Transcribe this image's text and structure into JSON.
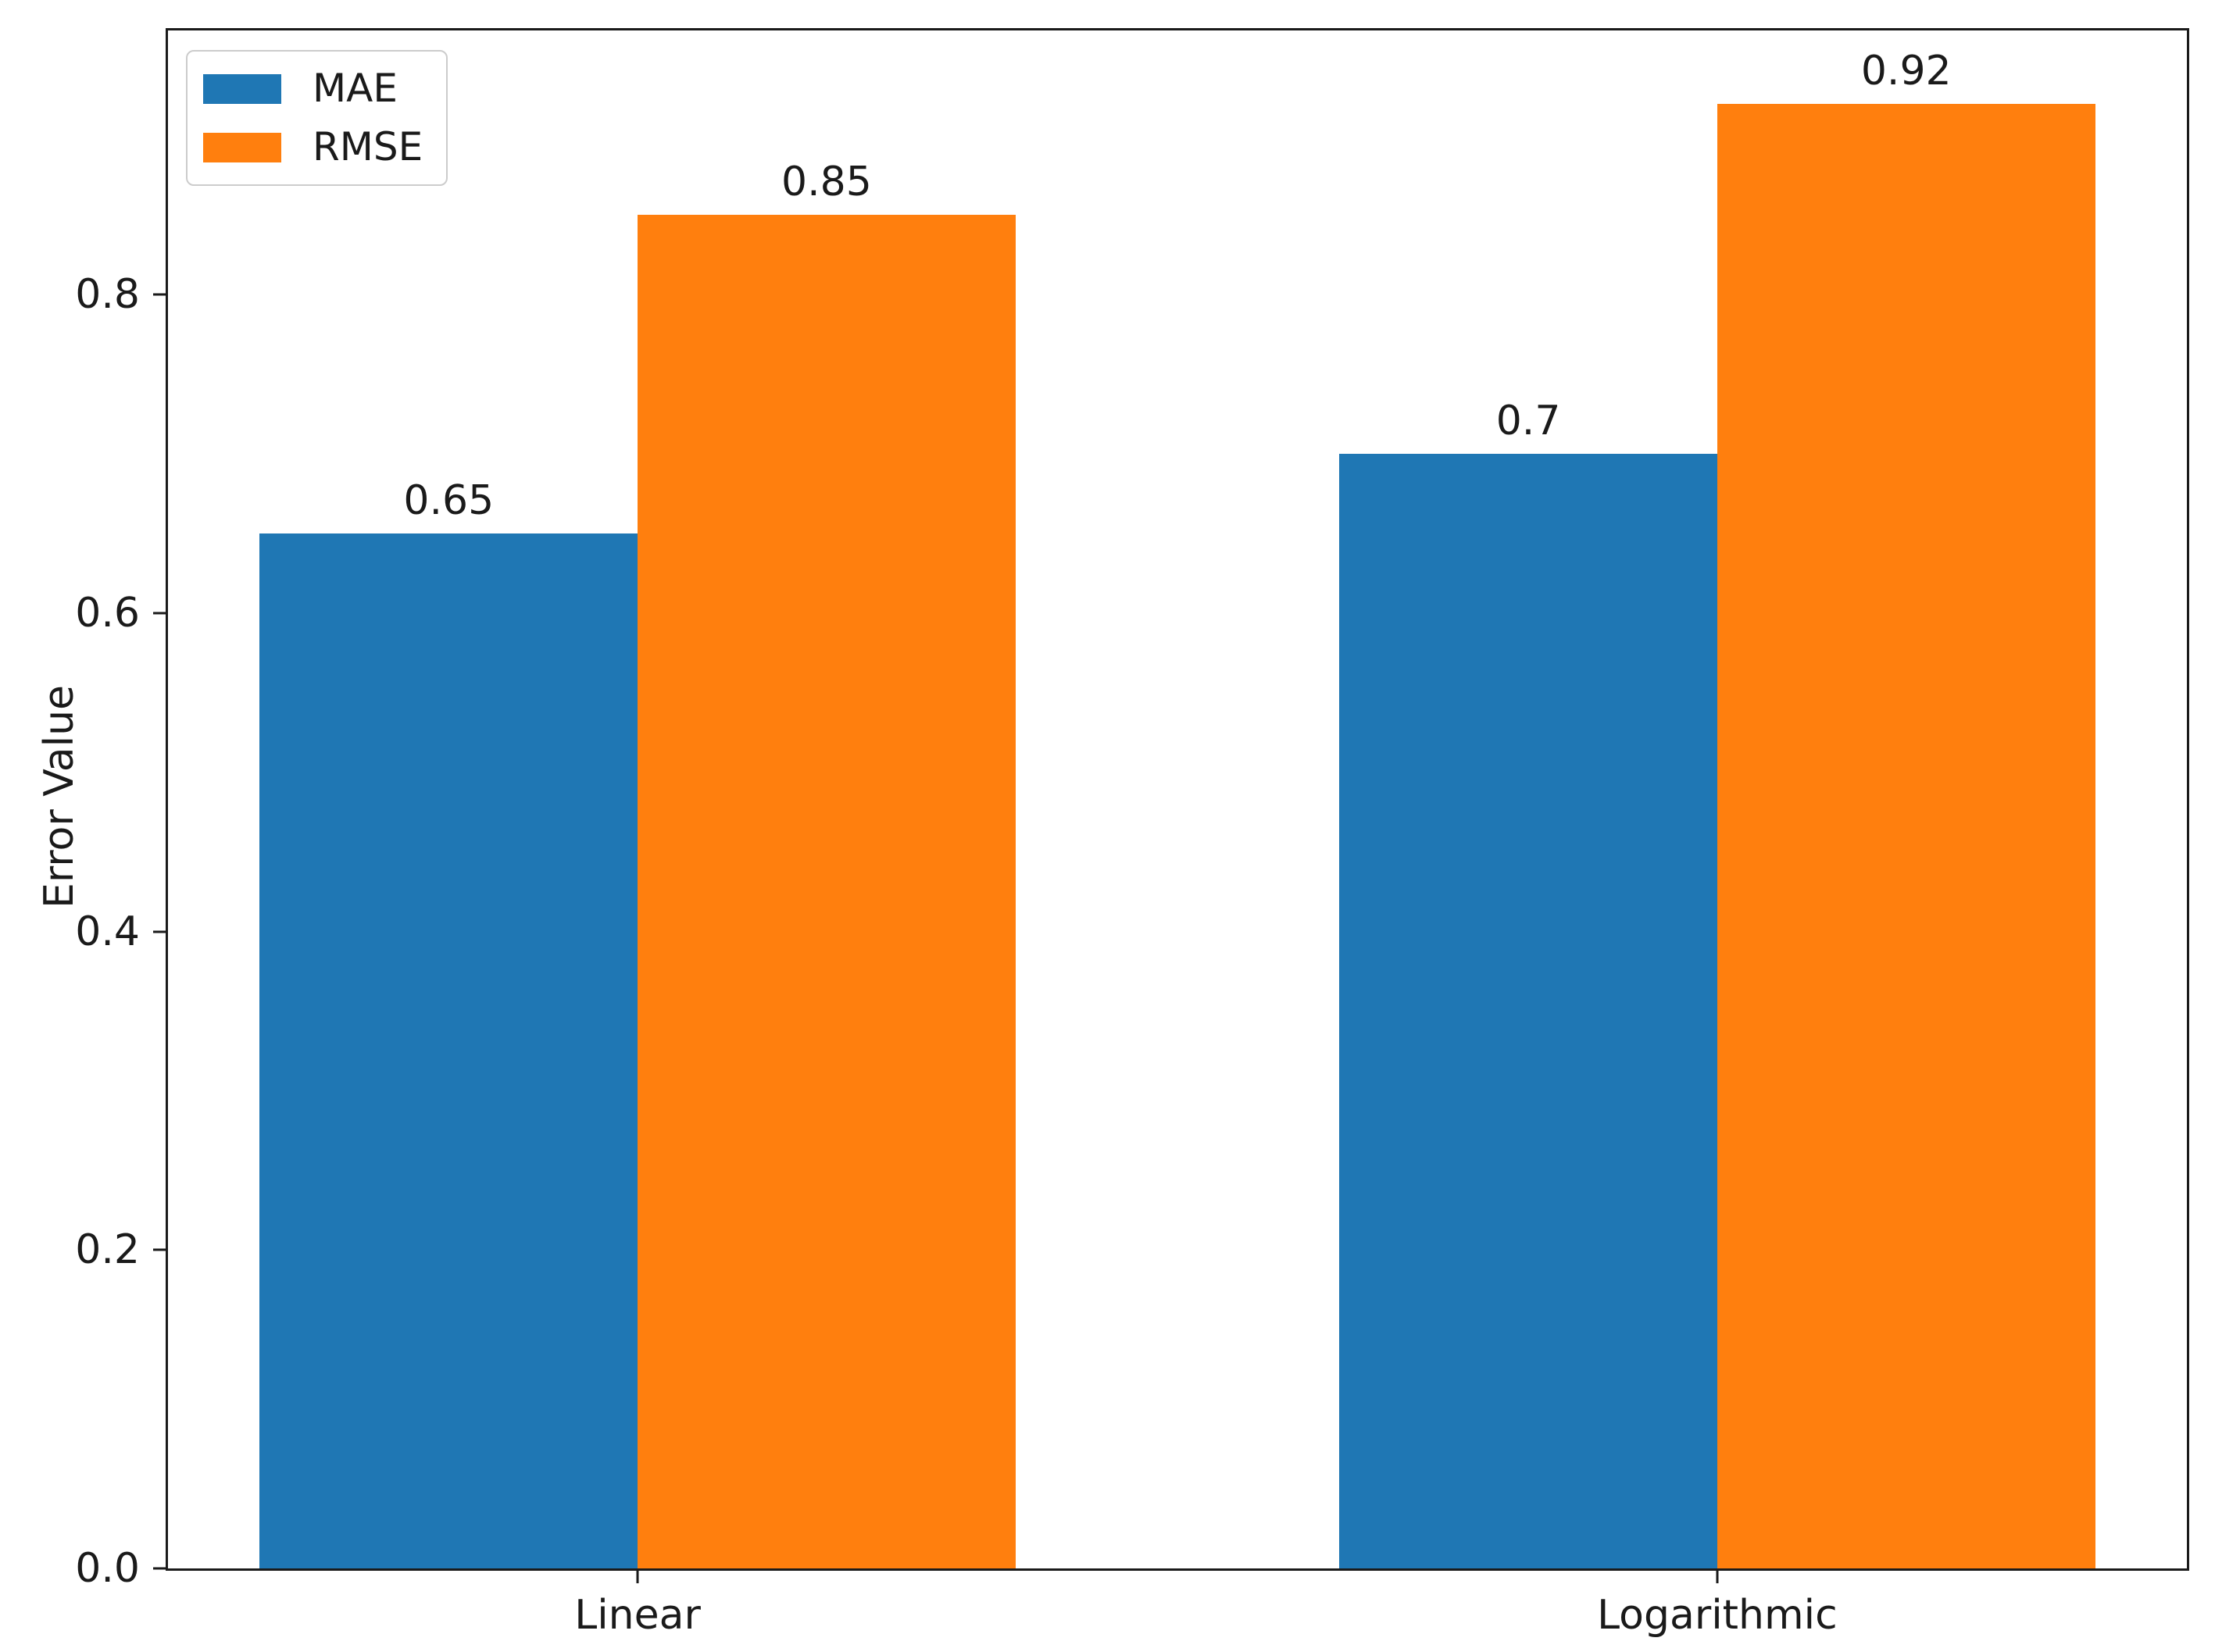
{
  "chart_data": {
    "type": "bar",
    "title": "",
    "xlabel": "",
    "ylabel": "Error Value",
    "categories": [
      "Linear",
      "Logarithmic"
    ],
    "group_positions": [
      0,
      1
    ],
    "series": [
      {
        "name": "MAE",
        "color": "#1f77b4",
        "values": [
          0.65,
          0.7
        ],
        "value_labels": [
          "0.65",
          "0.7"
        ]
      },
      {
        "name": "RMSE",
        "color": "#ff7f0e",
        "values": [
          0.85,
          0.92
        ],
        "value_labels": [
          "0.85",
          "0.92"
        ]
      }
    ],
    "bar_width": 0.35,
    "xlim": [
      -0.435,
      1.435
    ],
    "ylim": [
      0,
      0.966
    ],
    "yticks": {
      "values": [
        0.0,
        0.2,
        0.4,
        0.6,
        0.8
      ],
      "labels": [
        "0.0",
        "0.2",
        "0.4",
        "0.6",
        "0.8"
      ]
    },
    "grid": false,
    "legend_position": "upper-left",
    "axis_color": "#1a1a1a",
    "background_color": "#ffffff"
  }
}
